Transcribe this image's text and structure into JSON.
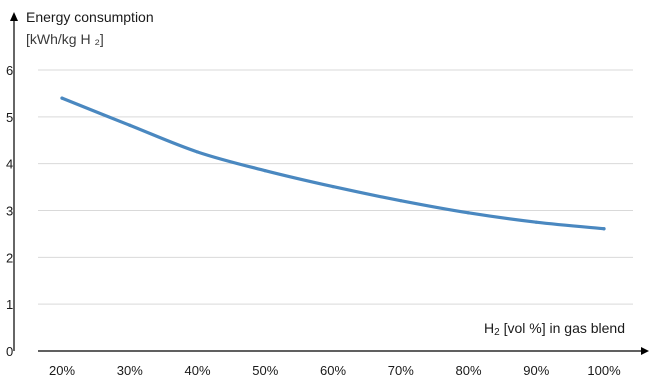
{
  "chart_data": {
    "type": "line",
    "ylabel_line1": "Energy consumption",
    "ylabel_line2": "[kWh/kg H ₂]",
    "xlabel_prefix": "H",
    "xlabel_sub": "2",
    "xlabel_suffix": " [vol %] in gas blend",
    "categories": [
      "20%",
      "30%",
      "40%",
      "50%",
      "60%",
      "70%",
      "80%",
      "90%",
      "100%"
    ],
    "values": [
      5.4,
      4.82,
      4.25,
      3.85,
      3.51,
      3.21,
      2.95,
      2.75,
      2.61
    ],
    "yticks": [
      "0",
      "1",
      "2",
      "3",
      "4",
      "5",
      "6"
    ],
    "ylim": [
      0,
      6
    ],
    "grid": true,
    "line_color": "#4a88c0",
    "grid_color": "#d9d9d9",
    "axis_color": "#000000"
  }
}
